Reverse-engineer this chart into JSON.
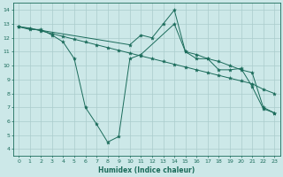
{
  "xlabel": "Humidex (Indice chaleur)",
  "xlim": [
    -0.5,
    23.5
  ],
  "ylim": [
    3.5,
    14.5
  ],
  "xticks": [
    0,
    1,
    2,
    3,
    4,
    5,
    6,
    7,
    8,
    9,
    10,
    11,
    12,
    13,
    14,
    15,
    16,
    17,
    18,
    19,
    20,
    21,
    22,
    23
  ],
  "yticks": [
    4,
    5,
    6,
    7,
    8,
    9,
    10,
    11,
    12,
    13,
    14
  ],
  "bg_color": "#cce8e8",
  "grid_color": "#aacccc",
  "line_color": "#1a6b5a",
  "line1_x": [
    0,
    1,
    2,
    3,
    4,
    5,
    6,
    7,
    8,
    9,
    10,
    11,
    14,
    15,
    16,
    17,
    18,
    19,
    20,
    21,
    22,
    23
  ],
  "line1_y": [
    12.8,
    12.6,
    12.6,
    12.2,
    11.7,
    10.5,
    7.0,
    5.8,
    4.5,
    4.9,
    10.5,
    10.8,
    13.0,
    11.0,
    10.5,
    10.5,
    9.7,
    9.7,
    9.8,
    8.5,
    6.9,
    6.6
  ],
  "line2_x": [
    0,
    1,
    2,
    3,
    4,
    5,
    6,
    7,
    8,
    9,
    10,
    11,
    12,
    13,
    14,
    15,
    16,
    17,
    18,
    19,
    20,
    21,
    22,
    23
  ],
  "line2_y": [
    12.8,
    12.7,
    12.5,
    12.3,
    12.1,
    11.9,
    11.7,
    11.5,
    11.3,
    11.1,
    10.9,
    10.7,
    10.5,
    10.3,
    10.1,
    9.9,
    9.7,
    9.5,
    9.3,
    9.1,
    8.9,
    8.7,
    8.3,
    8.0
  ],
  "line3_x": [
    0,
    10,
    11,
    12,
    13,
    14,
    15,
    16,
    17,
    18,
    19,
    20,
    21,
    22,
    23
  ],
  "line3_y": [
    12.8,
    11.5,
    12.2,
    12.0,
    13.0,
    14.0,
    11.0,
    10.8,
    10.5,
    10.3,
    10.0,
    9.7,
    9.5,
    7.0,
    6.6
  ]
}
